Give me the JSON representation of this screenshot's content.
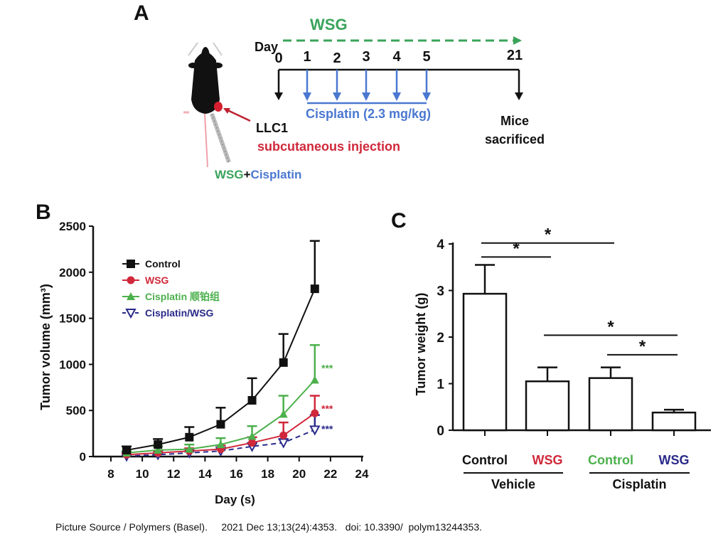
{
  "panel_a": {
    "letter": "A",
    "wsg_label": "WSG",
    "day_label": "Day",
    "days": [
      "0",
      "1",
      "2",
      "3",
      "4",
      "5",
      "21"
    ],
    "cisplatin_label": "Cisplatin  (2.3 mg/kg)",
    "llc1_label": "LLC1",
    "injection_label": "subcutaneous injection",
    "sacrificed_line1": "Mice",
    "sacrificed_line2": "sacrificed",
    "treatment_wsg": "WSG",
    "treatment_plus": "+",
    "treatment_cisplatin": "Cisplatin",
    "colors": {
      "wsg": "#3aa35a",
      "cisplatin": "#4a78d0",
      "injection": "#d0283a",
      "black": "#111111"
    }
  },
  "panel_b": {
    "letter": "B"
  },
  "panel_c": {
    "letter": "C"
  },
  "caption": "Picture Source / Polymers (Basel).     2021 Dec 13;13(24):4353.   doi: 10.3390/  polym13244353.",
  "chart_data": [
    {
      "id": "B",
      "type": "line",
      "title": "",
      "xlabel": "Day (s)",
      "ylabel": "Tumor volume (mm³)",
      "xlim": [
        8,
        24
      ],
      "ylim": [
        0,
        2500
      ],
      "xticks": [
        8,
        10,
        12,
        14,
        16,
        18,
        20,
        22,
        24
      ],
      "yticks": [
        0,
        500,
        1000,
        1500,
        2000,
        2500
      ],
      "grid": false,
      "legend_position": "top-left",
      "x": [
        9,
        11,
        13,
        15,
        17,
        19,
        21
      ],
      "series": [
        {
          "name": "Control",
          "color": "#111111",
          "marker": "square",
          "dash": false,
          "values": [
            70,
            130,
            210,
            350,
            610,
            1020,
            1820
          ],
          "error": [
            40,
            60,
            110,
            180,
            240,
            310,
            520
          ]
        },
        {
          "name": "WSG",
          "color": "#d0283a",
          "marker": "circle",
          "dash": false,
          "values": [
            20,
            40,
            60,
            80,
            150,
            230,
            470
          ],
          "error": [
            15,
            20,
            30,
            40,
            60,
            140,
            190
          ],
          "annotation": "***"
        },
        {
          "name": "Cisplatin 顺铂组",
          "color": "#4cb04c",
          "marker": "triangle-up",
          "dash": false,
          "values": [
            40,
            70,
            80,
            130,
            220,
            460,
            830
          ],
          "error": [
            20,
            40,
            50,
            70,
            110,
            200,
            380
          ],
          "annotation": "***"
        },
        {
          "name": "Cisplatin/WSG",
          "color": "#2a2a8a",
          "marker": "triangle-down-open",
          "dash": true,
          "values": [
            5,
            20,
            40,
            60,
            110,
            150,
            290
          ],
          "error": [
            10,
            10,
            15,
            20,
            30,
            40,
            160
          ],
          "annotation": "***"
        }
      ]
    },
    {
      "id": "C",
      "type": "bar",
      "title": "",
      "xlabel": "",
      "ylabel": "Tumor weight (g)",
      "ylim": [
        0,
        4
      ],
      "yticks": [
        0,
        1,
        2,
        3,
        4
      ],
      "grid": false,
      "categories": [
        "Control",
        "WSG",
        "Control",
        "WSG"
      ],
      "category_colors": [
        "#111111",
        "#d0283a",
        "#4cb04c",
        "#2a2a8a"
      ],
      "groups": [
        {
          "label": "Vehicle",
          "members": [
            0,
            1
          ]
        },
        {
          "label": "Cisplatin",
          "members": [
            2,
            3
          ]
        }
      ],
      "values": [
        2.93,
        1.05,
        1.12,
        0.38
      ],
      "error": [
        0.62,
        0.3,
        0.23,
        0.06
      ],
      "significance": [
        {
          "from": 0,
          "to": 1,
          "label": "*",
          "level": 3.72
        },
        {
          "from": 0,
          "to": 2,
          "label": "*",
          "level": 4.02
        },
        {
          "from": 1,
          "to": 3,
          "label": "*",
          "level": 2.04
        },
        {
          "from": 2,
          "to": 3,
          "label": "*",
          "level": 1.62
        }
      ]
    }
  ]
}
